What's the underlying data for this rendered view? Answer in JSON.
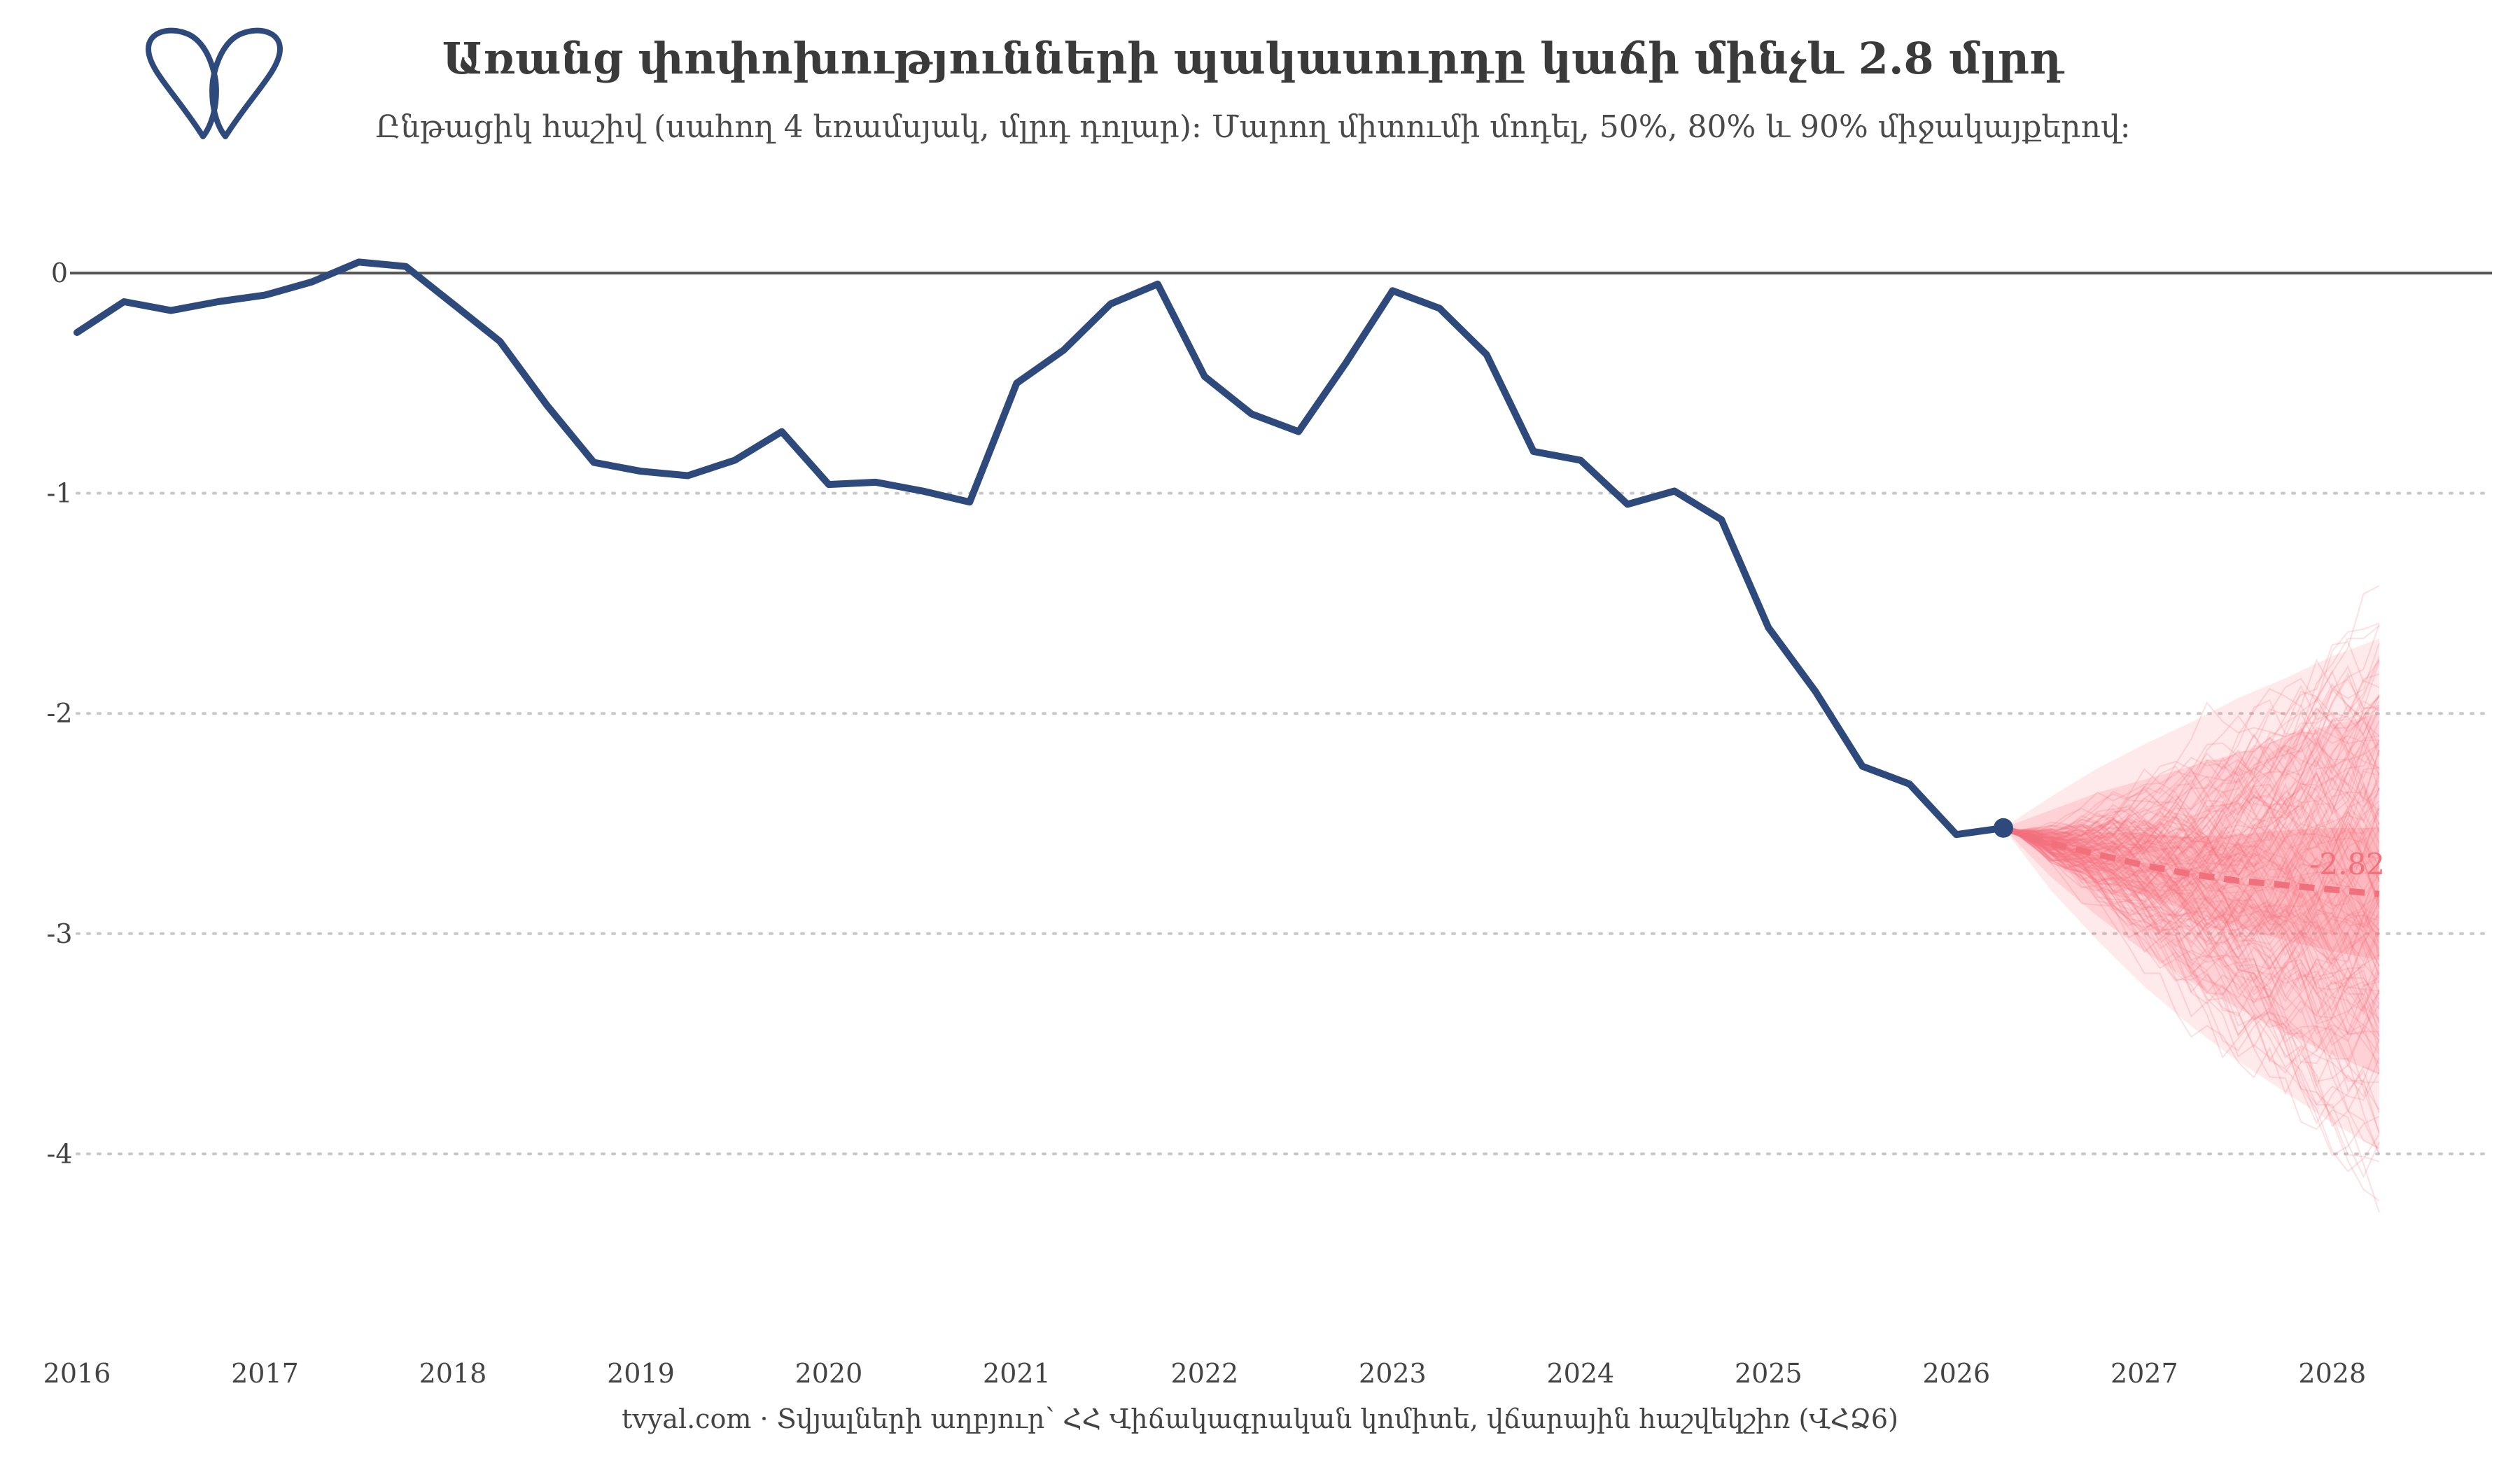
{
  "header": {
    "title": "Առանց փոփոխությունների պակասուրդը կաճի մինչև 2.8 մլրդ",
    "subtitle": "Ընթացիկ հաշիվ (սահող 4 եռամսյակ, մլրդ դոլար)։ Մարող միտումի մոդել, 50%, 80% և 90% միջակայքերով։"
  },
  "footer": {
    "caption": "tvyal.com  ·  Տվյալների աղբյուր՝ ՀՀ Վիճակագրական կոմիտե, վճարային հաշվեկշիռ (ՎՀՁ6)"
  },
  "logo": {
    "icon": "tvyal-logo-icon"
  },
  "colors": {
    "history_line": "#2e4a7d",
    "forecast": "#f87480",
    "forecast_median": "#f0707c",
    "zero_line": "#555555",
    "grid": "#c8c8c8"
  },
  "chart_data": {
    "type": "line",
    "xlabel": "",
    "ylabel": "",
    "x_tick_labels": [
      "2016",
      "2017",
      "2018",
      "2019",
      "2020",
      "2021",
      "2022",
      "2023",
      "2024",
      "2025",
      "2026",
      "2027",
      "2028"
    ],
    "y_tick_labels": [
      "0",
      "-1",
      "-2",
      "-3",
      "-4"
    ],
    "xlim": [
      2016.0,
      2028.85
    ],
    "ylim": [
      -4.8,
      0.35
    ],
    "grid": "horizontal dotted",
    "series": [
      {
        "x": [
          2016.0,
          2016.25,
          2016.5,
          2016.75,
          2017.0,
          2017.25,
          2017.5,
          2017.75,
          2018.0,
          2018.25,
          2018.5,
          2018.75,
          2019.0,
          2019.25,
          2019.5,
          2019.75,
          2020.0,
          2020.25,
          2020.5,
          2020.75,
          2021.0,
          2021.25,
          2021.5,
          2021.75,
          2022.0,
          2022.25,
          2022.5,
          2022.75,
          2023.0,
          2023.25,
          2023.5,
          2023.75,
          2024.0,
          2024.25,
          2024.5,
          2024.75,
          2025.0,
          2025.25,
          2025.5,
          2025.75,
          2026.0,
          2026.25
        ],
        "values": [
          -0.27,
          -0.13,
          -0.17,
          -0.13,
          -0.1,
          -0.04,
          0.05,
          0.03,
          -0.14,
          -0.31,
          -0.6,
          -0.86,
          -0.9,
          -0.92,
          -0.85,
          -0.72,
          -0.96,
          -0.95,
          -0.99,
          -1.04,
          -0.5,
          -0.35,
          -0.14,
          -0.05,
          -0.47,
          -0.64,
          -0.72,
          -0.41,
          -0.08,
          -0.16,
          -0.37,
          -0.81,
          -0.85,
          -1.05,
          -0.99,
          -1.12,
          -1.61,
          -1.9,
          -2.24,
          -2.32,
          -2.55,
          -2.52
        ]
      },
      {
        "x": [
          2026.25,
          2026.5,
          2026.75,
          2027.0,
          2027.25,
          2027.5,
          2027.75,
          2028.0,
          2028.25
        ],
        "values": [
          -2.52,
          -2.59,
          -2.64,
          -2.69,
          -2.73,
          -2.76,
          -2.78,
          -2.8,
          -2.82
        ]
      }
    ],
    "forecast_intervals": [
      {
        "level": "50%",
        "x": [
          2026.25,
          2026.5,
          2026.75,
          2027.0,
          2027.25,
          2027.5,
          2027.75,
          2028.0,
          2028.25
        ],
        "low": [
          -2.52,
          -2.64,
          -2.74,
          -2.83,
          -2.9,
          -2.97,
          -3.03,
          -3.08,
          -3.12
        ],
        "high": [
          -2.52,
          -2.54,
          -2.54,
          -2.55,
          -2.56,
          -2.55,
          -2.53,
          -2.52,
          -2.52
        ]
      },
      {
        "level": "80%",
        "x": [
          2026.25,
          2026.5,
          2026.75,
          2027.0,
          2027.25,
          2027.5,
          2027.75,
          2028.0,
          2028.25
        ],
        "low": [
          -2.52,
          -2.74,
          -2.92,
          -3.08,
          -3.22,
          -3.34,
          -3.45,
          -3.55,
          -3.64
        ],
        "high": [
          -2.52,
          -2.44,
          -2.36,
          -2.3,
          -2.24,
          -2.18,
          -2.11,
          -2.05,
          -2.0
        ]
      },
      {
        "level": "90%",
        "x": [
          2026.25,
          2026.5,
          2026.75,
          2027.0,
          2027.25,
          2027.5,
          2027.75,
          2028.0,
          2028.25
        ],
        "low": [
          -2.52,
          -2.8,
          -3.03,
          -3.24,
          -3.42,
          -3.58,
          -3.72,
          -3.86,
          -3.98
        ],
        "high": [
          -2.52,
          -2.38,
          -2.25,
          -2.14,
          -2.04,
          -1.93,
          -1.84,
          -1.74,
          -1.66
        ]
      }
    ],
    "annotations": [
      {
        "text": "-2.82",
        "x": 2028.25,
        "y": -2.82
      }
    ]
  }
}
